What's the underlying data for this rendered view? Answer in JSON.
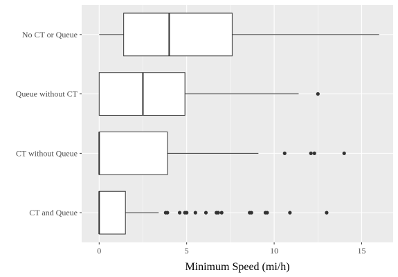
{
  "chart_data": {
    "type": "boxplot",
    "orientation": "horizontal",
    "xlabel": "Minimum Speed (mi/h)",
    "ylabel": "",
    "xlim": [
      -1.0,
      16.8
    ],
    "xticks": [
      0,
      5,
      10,
      15
    ],
    "grid": true,
    "colors": {
      "panel": "#EBEBEB",
      "grid_major": "#FFFFFF",
      "box_fill": "#FFFFFF",
      "line": "#333333"
    },
    "categories": [
      "CT and Queue",
      "CT without Queue",
      "Queue without CT",
      "No CT or Queue"
    ],
    "boxes": [
      {
        "category": "CT and Queue",
        "min": 0.0,
        "q1": 0.0,
        "median": 0.0,
        "q3": 1.5,
        "max": 3.4,
        "outliers": [
          3.8,
          3.9,
          4.6,
          4.9,
          5.0,
          5.5,
          6.1,
          6.7,
          6.8,
          7.0,
          8.6,
          8.7,
          9.5,
          9.6,
          10.9,
          13.0
        ]
      },
      {
        "category": "CT without Queue",
        "min": 0.0,
        "q1": 0.0,
        "median": 0.0,
        "q3": 3.9,
        "max": 9.1,
        "outliers": [
          10.6,
          12.1,
          12.3,
          14.0
        ]
      },
      {
        "category": "Queue without CT",
        "min": 0.0,
        "q1": 0.0,
        "median": 2.5,
        "q3": 4.9,
        "max": 11.4,
        "outliers": [
          12.5
        ]
      },
      {
        "category": "No CT or Queue",
        "min": 0.0,
        "q1": 1.4,
        "median": 4.0,
        "q3": 7.6,
        "max": 16.0,
        "outliers": []
      }
    ]
  }
}
